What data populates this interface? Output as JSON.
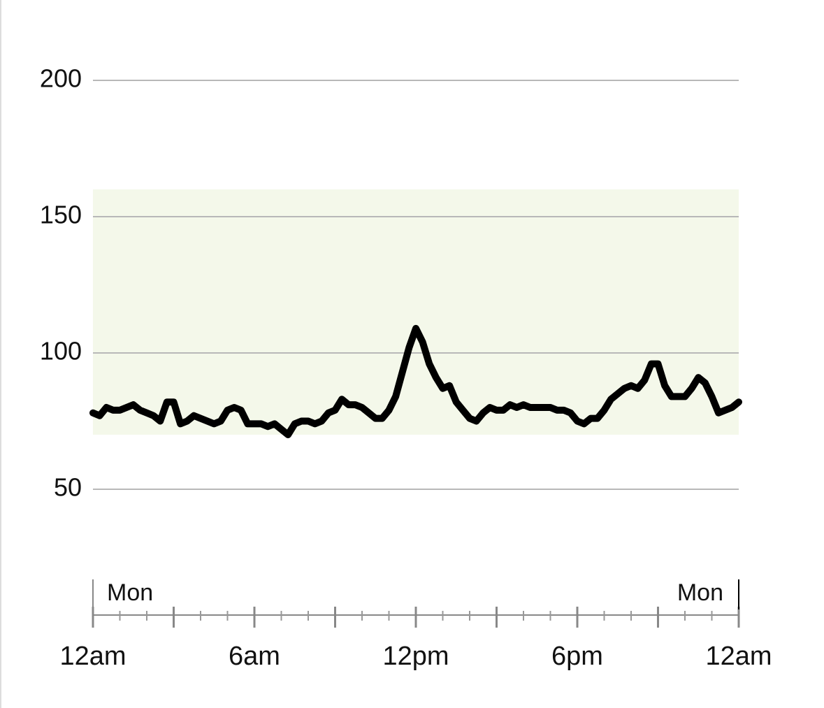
{
  "chart_data": {
    "type": "line",
    "x": [
      0,
      0.25,
      0.5,
      0.75,
      1,
      1.25,
      1.5,
      1.75,
      2,
      2.25,
      2.5,
      2.75,
      3,
      3.25,
      3.5,
      3.75,
      4,
      4.25,
      4.5,
      4.75,
      5,
      5.25,
      5.5,
      5.75,
      6,
      6.25,
      6.5,
      6.75,
      7,
      7.25,
      7.5,
      7.75,
      8,
      8.25,
      8.5,
      8.75,
      9,
      9.25,
      9.5,
      9.75,
      10,
      10.25,
      10.5,
      10.75,
      11,
      11.25,
      11.5,
      11.75,
      12,
      12.25,
      12.5,
      12.75,
      13,
      13.25,
      13.5,
      13.75,
      14,
      14.25,
      14.5,
      14.75,
      15,
      15.25,
      15.5,
      15.75,
      16,
      16.25,
      16.5,
      16.75,
      17,
      17.25,
      17.5,
      17.75,
      18,
      18.25,
      18.5,
      18.75,
      19,
      19.25,
      19.5,
      19.75,
      20,
      20.25,
      20.5,
      20.75,
      21,
      21.25,
      21.5,
      21.75,
      22,
      22.25,
      22.5,
      22.75,
      23,
      23.25,
      23.5,
      23.75,
      24
    ],
    "series": [
      {
        "color": "#000000",
        "values": [
          78,
          77,
          80,
          79,
          79,
          80,
          81,
          79,
          78,
          77,
          75,
          82,
          82,
          74,
          75,
          77,
          76,
          75,
          74,
          75,
          79,
          80,
          79,
          74,
          74,
          74,
          73,
          74,
          72,
          70,
          74,
          75,
          75,
          74,
          75,
          78,
          79,
          83,
          81,
          81,
          80,
          78,
          76,
          76,
          79,
          84,
          93,
          102,
          109,
          104,
          96,
          91,
          87,
          88,
          82,
          79,
          76,
          75,
          78,
          80,
          79,
          79,
          81,
          80,
          81,
          80,
          80,
          80,
          80,
          79,
          79,
          78,
          75,
          74,
          76,
          76,
          79,
          83,
          85,
          87,
          88,
          87,
          90,
          96,
          96,
          88,
          84,
          84,
          84,
          87,
          91,
          89,
          84,
          78,
          79,
          80,
          82
        ]
      }
    ],
    "target_range": [
      70,
      160
    ],
    "target_color": "#f4f8ea",
    "xlim": [
      0,
      24
    ],
    "xticks": [
      {
        "value": 0,
        "label": "12am"
      },
      {
        "value": 6,
        "label": "6am"
      },
      {
        "value": 12,
        "label": "12pm"
      },
      {
        "value": 18,
        "label": "6pm"
      },
      {
        "value": 24,
        "label": "12am"
      }
    ],
    "x_major_tick_marks": [
      0,
      3,
      6,
      9,
      12,
      15,
      18,
      21,
      24
    ],
    "x_minor_tick_marks": [
      1,
      2,
      4,
      5,
      7,
      8,
      10,
      11,
      13,
      14,
      16,
      17,
      19,
      20,
      22,
      23
    ],
    "day_markers": [
      {
        "value": 0,
        "label": "Mon"
      },
      {
        "value": 24,
        "label": "Mon"
      }
    ],
    "ylim": [
      50,
      200
    ],
    "yticks": [
      50,
      100,
      150,
      200
    ],
    "grid": true
  }
}
